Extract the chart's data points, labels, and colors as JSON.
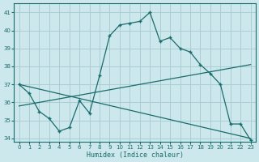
{
  "xlabel": "Humidex (Indice chaleur)",
  "bg_color": "#cce8ec",
  "grid_color": "#aacdd4",
  "line_color": "#1a6b6b",
  "ylim": [
    33.8,
    41.5
  ],
  "xlim": [
    -0.5,
    23.5
  ],
  "yticks": [
    34,
    35,
    36,
    37,
    38,
    39,
    40,
    41
  ],
  "xticks": [
    0,
    1,
    2,
    3,
    4,
    5,
    6,
    7,
    8,
    9,
    10,
    11,
    12,
    13,
    14,
    15,
    16,
    17,
    18,
    19,
    20,
    21,
    22,
    23
  ],
  "line1_x": [
    0,
    1,
    2,
    3,
    4,
    5,
    6,
    7,
    8,
    9,
    10,
    11,
    12,
    13,
    14,
    15,
    16,
    17,
    18,
    19,
    20,
    21,
    22,
    23
  ],
  "line1_y": [
    37.0,
    36.5,
    35.5,
    35.1,
    34.4,
    34.6,
    36.1,
    35.4,
    37.5,
    39.7,
    40.3,
    40.4,
    40.5,
    41.0,
    39.4,
    39.6,
    39.0,
    38.8,
    38.1,
    37.6,
    37.0,
    34.8,
    34.8,
    33.9
  ],
  "line2_x": [
    0,
    23
  ],
  "line2_y": [
    35.8,
    38.1
  ],
  "line3_x": [
    0,
    23
  ],
  "line3_y": [
    37.0,
    34.0
  ]
}
